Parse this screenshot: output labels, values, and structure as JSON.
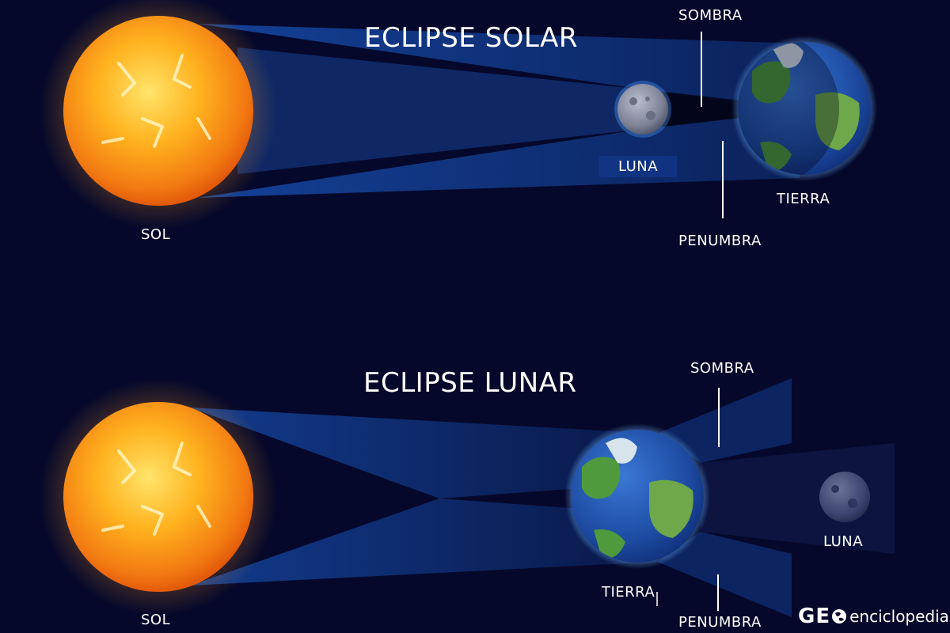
{
  "solar": {
    "title": "ECLIPSE SOLAR",
    "labels": {
      "sun": "SOL",
      "moon": "LUNA",
      "earth": "TIERRA",
      "umbra": "SOMBRA",
      "penumbra": "PENUMBRA"
    }
  },
  "lunar": {
    "title": "ECLIPSE LUNAR",
    "labels": {
      "sun": "SOL",
      "moon": "LUNA",
      "earth": "TIERRA",
      "umbra": "SOMBRA",
      "penumbra": "PENUMBRA"
    }
  },
  "brand": {
    "mark": "GE",
    "text": "enciclopedia",
    "icon": "globe-icon"
  },
  "colors": {
    "background": "#05082a",
    "beam": "#1f6ff0",
    "sun_core": "#ffd23a",
    "sun_edge": "#f06a10",
    "earth_ocean": "#1e4fa8",
    "earth_land": "#4f9a3c",
    "moon": "#8f94a8"
  }
}
